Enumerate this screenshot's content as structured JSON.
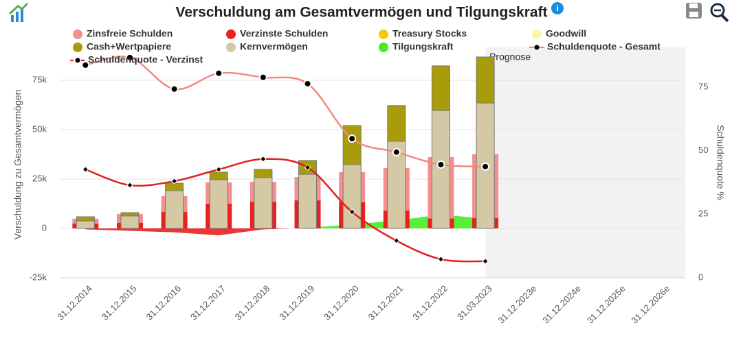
{
  "chart_data": {
    "type": "combo",
    "title": "Verschuldung am Gesamtvermögen und Tilgungskraft",
    "y_title": "Verschuldung zu Gesamtvermögen",
    "y2_title": "Schuldenquote %",
    "categories": [
      "31.12.2014",
      "31.12.2015",
      "31.12.2016",
      "31.12.2017",
      "31.12.2018",
      "31.12.2019",
      "31.12.2020",
      "31.12.2021",
      "31.12.2022",
      "31.03.2023",
      "31.12.2023e",
      "31.12.2024e",
      "31.12.2025e",
      "31.12.2026e"
    ],
    "ylim": [
      -25000,
      91667
    ],
    "yticks": [
      {
        "value": -25000,
        "label": "-25k"
      },
      0,
      {
        "value": 25000,
        "label": "25k"
      },
      {
        "value": 50000,
        "label": "50k"
      },
      {
        "value": 75000,
        "label": "75k"
      }
    ],
    "y2lim": [
      0,
      90.6
    ],
    "y2ticks": [
      0,
      25,
      50,
      75
    ],
    "grid": true,
    "forecast_band": {
      "from": "31.03.2023",
      "label": "Prognose",
      "color": "#f2f2f2"
    },
    "series": [
      {
        "name": "Zinsfreie Schulden",
        "type": "column",
        "stack": "debt",
        "color": "#f28f8f",
        "values": [
          2500,
          4500,
          8000,
          10800,
          10100,
          11800,
          15300,
          21600,
          31100,
          32300,
          null,
          null,
          null,
          null
        ]
      },
      {
        "name": "Verzinste Schulden",
        "type": "column",
        "stack": "debt",
        "color": "#e8201e",
        "values": [
          2400,
          2800,
          8300,
          12500,
          13500,
          14200,
          13200,
          9000,
          5000,
          5200,
          null,
          null,
          null,
          null
        ]
      },
      {
        "name": "Treasury Stocks",
        "type": "column",
        "stack": "assets",
        "color": "#f5cc00",
        "values": [
          null,
          null,
          null,
          null,
          null,
          null,
          null,
          null,
          null,
          null,
          null,
          null,
          null,
          null
        ]
      },
      {
        "name": "Goodwill",
        "type": "column",
        "stack": "assets",
        "color": "#fff3b0",
        "values": [
          null,
          null,
          null,
          null,
          null,
          null,
          null,
          null,
          null,
          null,
          null,
          null,
          null,
          null
        ]
      },
      {
        "name": "Cash+Wertpapiere",
        "type": "column",
        "stack": "assets",
        "color": "#a89c0b",
        "values": [
          2100,
          1700,
          3800,
          3800,
          4200,
          7000,
          19800,
          18100,
          22600,
          23300,
          null,
          null,
          null,
          null
        ]
      },
      {
        "name": "Kernvermögen",
        "type": "column",
        "stack": "assets",
        "color": "#d5c9a5",
        "values": [
          3800,
          6300,
          19100,
          24700,
          25700,
          27400,
          32300,
          44100,
          59700,
          63500,
          null,
          null,
          null,
          null
        ]
      },
      {
        "name": "Tilgungskraft",
        "type": "area",
        "color": "#44ee22",
        "negative_color": "#e8201e",
        "values": [
          -500,
          -1200,
          -2000,
          -3500,
          -500,
          300,
          2000,
          4000,
          7000,
          5000,
          null,
          null,
          null,
          null
        ]
      },
      {
        "name": "Schuldenquote - Gesamt",
        "type": "spline",
        "axis": "y2",
        "marker": "circle",
        "color": "#f08a80",
        "values": [
          83.6,
          86.6,
          74.2,
          80.4,
          78.8,
          76.3,
          54.7,
          49.4,
          44.5,
          43.7,
          null,
          null,
          null,
          null
        ]
      },
      {
        "name": "Schuldenquote - Verzinst",
        "type": "spline",
        "axis": "y2",
        "marker": "diamond",
        "dashed_legend": true,
        "color": "#e0201c",
        "values": [
          42.6,
          36.4,
          38.0,
          42.6,
          46.7,
          43.4,
          25.9,
          14.6,
          7.3,
          6.5,
          null,
          null,
          null,
          null
        ]
      }
    ]
  }
}
